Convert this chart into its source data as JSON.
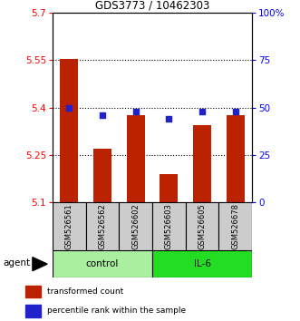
{
  "title": "GDS3773 / 10462303",
  "samples": [
    "GSM526561",
    "GSM526562",
    "GSM526602",
    "GSM526603",
    "GSM526605",
    "GSM526678"
  ],
  "bar_values": [
    5.555,
    5.27,
    5.375,
    5.19,
    5.345,
    5.375
  ],
  "percentile_values": [
    50,
    46,
    48,
    44,
    48,
    48
  ],
  "ylim_left": [
    5.1,
    5.7
  ],
  "ylim_right": [
    0,
    100
  ],
  "yticks_left": [
    5.1,
    5.25,
    5.4,
    5.55,
    5.7
  ],
  "ytick_labels_left": [
    "5.1",
    "5.25",
    "5.4",
    "5.55",
    "5.7"
  ],
  "yticks_right": [
    0,
    25,
    50,
    75,
    100
  ],
  "ytick_labels_right": [
    "0",
    "25",
    "50",
    "75",
    "100%"
  ],
  "bar_color": "#BB2200",
  "dot_color": "#2222CC",
  "groups": [
    {
      "label": "control",
      "indices": [
        0,
        1,
        2
      ],
      "color": "#AAEEA0"
    },
    {
      "label": "IL-6",
      "indices": [
        3,
        4,
        5
      ],
      "color": "#22DD22"
    }
  ],
  "agent_label": "agent",
  "legend_bar_label": "transformed count",
  "legend_dot_label": "percentile rank within the sample",
  "sample_box_color": "#CCCCCC",
  "grid_dotted_at": [
    5.25,
    5.4,
    5.55
  ]
}
